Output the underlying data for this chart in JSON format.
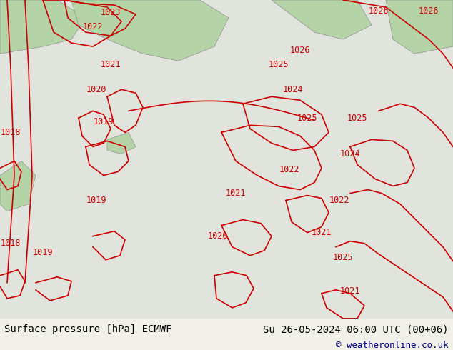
{
  "title_left": "Surface pressure [hPa] ECMWF",
  "title_right": "Su 26-05-2024 06:00 UTC (00+06)",
  "copyright": "© weatheronline.co.uk",
  "bg_color": "#f0f0e8",
  "map_bg": "#d4ecd4",
  "contour_color": "#cc0000",
  "land_color": "#b8d8b8",
  "sea_color": "#e8e8e0",
  "bottom_bar_color": "#e8e8e0",
  "text_color": "#000080",
  "contour_label_color": "#cc0000",
  "bottom_text_color": "#000000",
  "figsize": [
    6.34,
    4.9
  ],
  "dpi": 100
}
